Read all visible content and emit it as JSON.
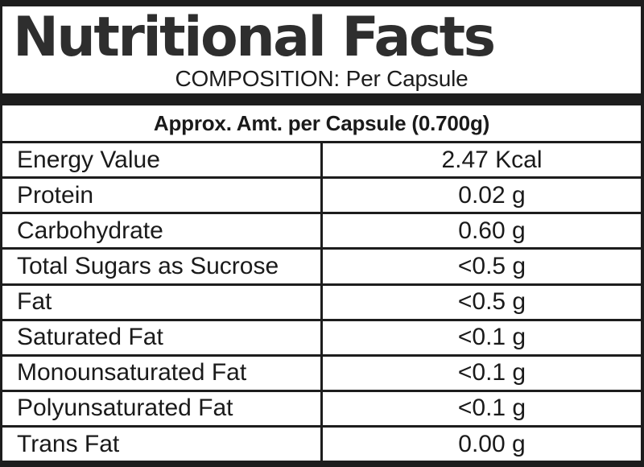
{
  "label": {
    "title": "Nutritional Facts",
    "subtitle": "COMPOSITION: Per Capsule",
    "table_header": "Approx. Amt. per Capsule (0.700g)",
    "rows": [
      {
        "name": "Energy Value",
        "value": "2.47 Kcal"
      },
      {
        "name": "Protein",
        "value": "0.02 g"
      },
      {
        "name": "Carbohydrate",
        "value": "0.60 g"
      },
      {
        "name": "Total Sugars as Sucrose",
        "value": "<0.5 g"
      },
      {
        "name": "Fat",
        "value": "<0.5 g"
      },
      {
        "name": "Saturated Fat",
        "value": "<0.1 g"
      },
      {
        "name": "Monounsaturated Fat",
        "value": "<0.1 g"
      },
      {
        "name": "Polyunsaturated Fat",
        "value": "<0.1 g"
      },
      {
        "name": "Trans Fat",
        "value": "0.00 g"
      }
    ],
    "colors": {
      "border": "#1d1d1d",
      "title_text": "#2e2e2e",
      "body_text": "#1a1a1a",
      "background": "#ffffff"
    }
  }
}
